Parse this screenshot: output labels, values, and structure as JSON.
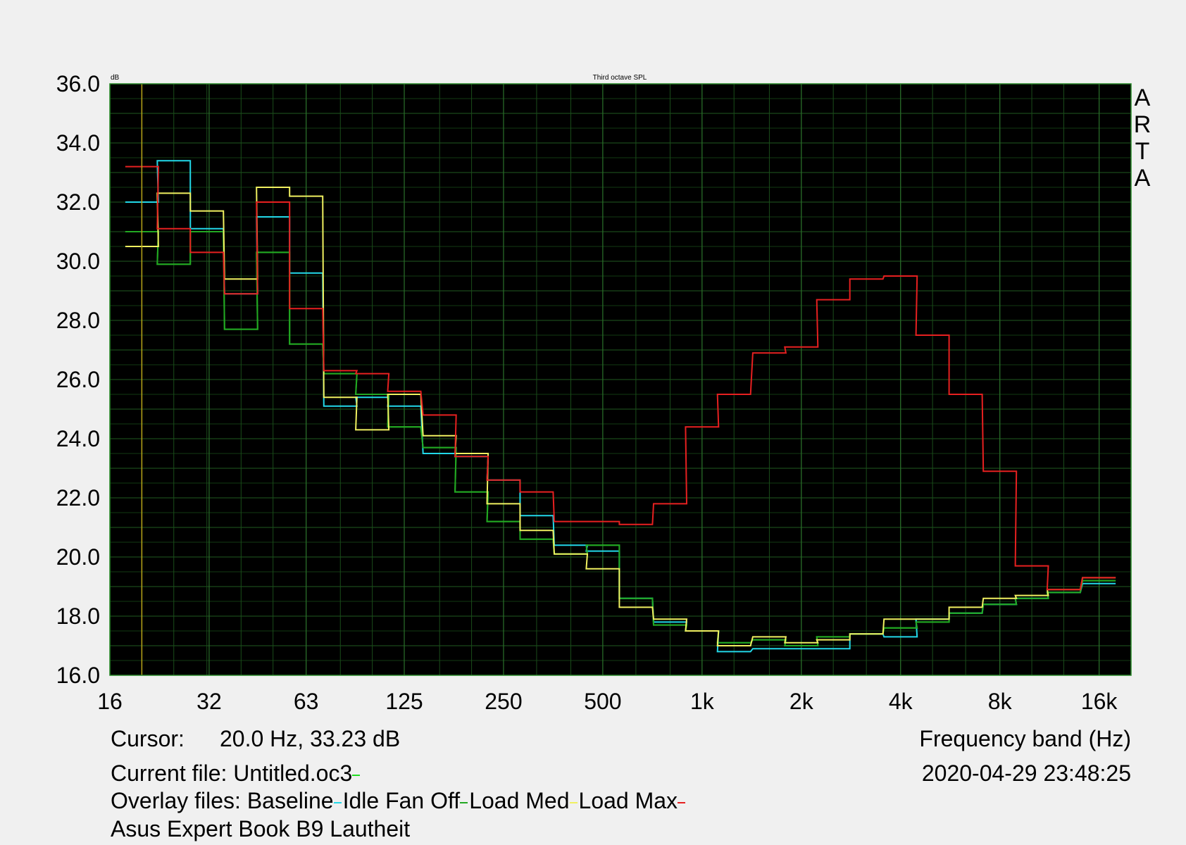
{
  "chart_data": {
    "type": "line",
    "title": "Third octave SPL",
    "ylabel": "dB",
    "xlabel": "Frequency band (Hz)",
    "brand": "ARTA",
    "x_scale": "log",
    "ylim": [
      16.0,
      36.0
    ],
    "xlim": [
      16,
      20000
    ],
    "y_ticks": [
      "16.0",
      "18.0",
      "20.0",
      "22.0",
      "24.0",
      "26.0",
      "28.0",
      "30.0",
      "32.0",
      "34.0",
      "36.0"
    ],
    "x_ticks": [
      {
        "label": "16",
        "value": 16
      },
      {
        "label": "32",
        "value": 32
      },
      {
        "label": "63",
        "value": 63
      },
      {
        "label": "125",
        "value": 125
      },
      {
        "label": "250",
        "value": 250
      },
      {
        "label": "500",
        "value": 500
      },
      {
        "label": "1k",
        "value": 1000
      },
      {
        "label": "2k",
        "value": 2000
      },
      {
        "label": "4k",
        "value": 4000
      },
      {
        "label": "8k",
        "value": 8000
      },
      {
        "label": "16k",
        "value": 16000
      }
    ],
    "cursor_frequency": 20.0,
    "bands": [
      20,
      25,
      31.5,
      40,
      50,
      63,
      80,
      100,
      125,
      160,
      200,
      250,
      315,
      400,
      500,
      630,
      800,
      1000,
      1250,
      1600,
      2000,
      2500,
      3150,
      4000,
      5000,
      6300,
      8000,
      10000,
      12500,
      16000
    ],
    "series": [
      {
        "name": "Untitled.oc3",
        "color": "#22a822",
        "values": [
          31.0,
          29.9,
          31.0,
          27.7,
          30.3,
          27.2,
          26.2,
          25.5,
          24.4,
          23.7,
          22.2,
          21.2,
          20.6,
          20.1,
          20.4,
          18.6,
          17.7,
          17.5,
          17.1,
          17.2,
          17.0,
          17.3,
          17.4,
          17.6,
          17.8,
          18.1,
          18.4,
          18.6,
          18.8,
          19.2
        ]
      },
      {
        "name": "Baseline",
        "color": "#22d8e8",
        "values": [
          32.0,
          33.4,
          31.1,
          28.9,
          31.5,
          29.6,
          25.1,
          25.4,
          25.1,
          23.5,
          23.4,
          22.6,
          21.4,
          20.4,
          20.2,
          18.6,
          17.8,
          17.5,
          16.8,
          16.9,
          16.9,
          16.9,
          17.4,
          17.3,
          17.9,
          18.1,
          18.4,
          18.6,
          18.8,
          19.1
        ]
      },
      {
        "name": "Idle Fan Off",
        "color": "#22a822",
        "values": [
          31.0,
          29.9,
          31.0,
          27.7,
          30.3,
          27.2,
          26.2,
          25.5,
          24.4,
          23.7,
          22.2,
          21.2,
          20.6,
          20.1,
          20.4,
          18.6,
          17.7,
          17.5,
          17.1,
          17.2,
          17.0,
          17.3,
          17.4,
          17.6,
          17.8,
          18.1,
          18.4,
          18.6,
          18.8,
          19.2
        ]
      },
      {
        "name": "Load Med",
        "color": "#f0f060",
        "values": [
          30.5,
          32.3,
          31.7,
          29.4,
          32.5,
          32.2,
          25.4,
          24.3,
          25.5,
          24.1,
          23.5,
          21.8,
          20.9,
          20.1,
          19.6,
          18.3,
          17.9,
          17.5,
          17.0,
          17.3,
          17.1,
          17.2,
          17.4,
          17.9,
          17.9,
          18.3,
          18.6,
          18.7,
          18.9,
          19.3
        ]
      },
      {
        "name": "Load Max",
        "color": "#e62020",
        "values": [
          33.2,
          31.1,
          30.3,
          28.9,
          32.0,
          28.4,
          26.3,
          26.2,
          25.6,
          24.8,
          23.4,
          22.6,
          22.2,
          21.2,
          21.2,
          21.1,
          21.8,
          24.4,
          25.5,
          26.9,
          27.1,
          28.7,
          29.4,
          29.5,
          27.5,
          25.5,
          22.9,
          19.7,
          18.9,
          19.3
        ]
      }
    ]
  },
  "info": {
    "cursor_label": "Cursor:",
    "cursor_value": "20.0 Hz, 33.23 dB",
    "current_file_label": "Current file:",
    "current_file": "Untitled.oc3",
    "current_file_color": "#22dd22",
    "overlay_label": "Overlay files:",
    "overlays": [
      {
        "name": "Baseline",
        "color": "#22d8e8"
      },
      {
        "name": "Idle Fan Off",
        "color": "#22a822"
      },
      {
        "name": "Load Med",
        "color": "#f0f060"
      },
      {
        "name": "Load Max",
        "color": "#e62020"
      }
    ],
    "note": "Asus Expert Book B9 Lautheit",
    "timestamp": "2020-04-29  23:48:25"
  }
}
